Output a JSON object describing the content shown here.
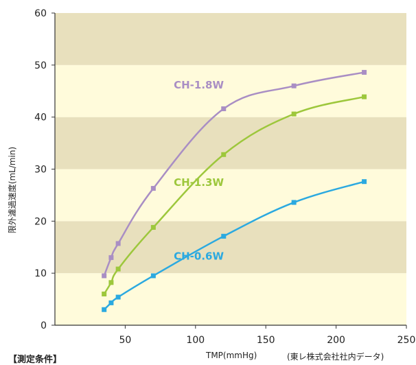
{
  "chart_data": {
    "type": "line",
    "xlabel": "TMP(mmHg)",
    "ylabel": "限外濾過速度(mL/min)",
    "xlim": [
      0,
      250
    ],
    "ylim": [
      0,
      60
    ],
    "x_ticks": [
      "50",
      "100",
      "150",
      "200",
      "250"
    ],
    "y_ticks": [
      "0",
      "10",
      "20",
      "30",
      "40",
      "50",
      "60"
    ],
    "band_colors": [
      "#FFFBDB",
      "#E8E0BD"
    ],
    "series": [
      {
        "name": "CH-1.8W",
        "color": "#A98EC4",
        "x": [
          35,
          40,
          45,
          70,
          120,
          170,
          220
        ],
        "y": [
          9.5,
          13,
          15.7,
          26.3,
          41.6,
          46,
          48.6
        ]
      },
      {
        "name": "CH-1.3W",
        "color": "#9DC73C",
        "x": [
          35,
          40,
          45,
          70,
          120,
          170,
          220
        ],
        "y": [
          6,
          8.2,
          10.8,
          18.8,
          32.8,
          40.6,
          43.9
        ]
      },
      {
        "name": "CH-0.6W",
        "color": "#2BA9E0",
        "x": [
          35,
          40,
          45,
          70,
          120,
          170,
          220
        ],
        "y": [
          3,
          4.3,
          5.4,
          9.5,
          17.1,
          23.6,
          27.6
        ]
      }
    ]
  },
  "source_note": "(東レ株式会社社内データ)",
  "conditions_label": "【測定条件】"
}
